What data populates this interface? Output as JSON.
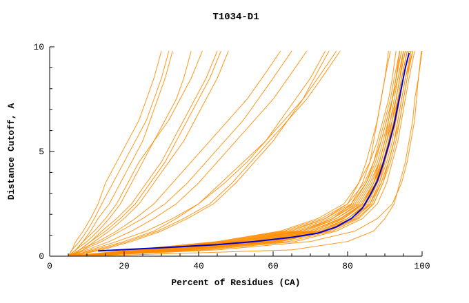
{
  "chart_data": {
    "type": "line",
    "title": "T1034-D1",
    "xlabel": "Percent of Residues (CA)",
    "ylabel": "Distance Cutoff, A",
    "xlim": [
      0,
      100
    ],
    "ylim": [
      0,
      10
    ],
    "xticks": [
      0,
      20,
      40,
      60,
      80,
      100
    ],
    "x_minor_step": 5,
    "yticks": [
      0,
      5,
      10
    ],
    "y_minor_step": 1,
    "grid": false,
    "legend": "none",
    "colors": {
      "model_lines": "#ff8c00",
      "best_model_line": "#0000cd",
      "axis": "#000000",
      "background": "#ffffff"
    },
    "y_levels": [
      0,
      0.3,
      0.7,
      1.2,
      1.8,
      2.5,
      3.5,
      4.5,
      5.5,
      6.5,
      7.5,
      8.5,
      9.8
    ],
    "model_series_x": [
      [
        5,
        6,
        7,
        9,
        11,
        13,
        15,
        18,
        21,
        24,
        26,
        28,
        30
      ],
      [
        5,
        7,
        9,
        11,
        13,
        16,
        19,
        22,
        25,
        27,
        29,
        31,
        33
      ],
      [
        5,
        6,
        8,
        10,
        12,
        14,
        17,
        20,
        23,
        26,
        28,
        30,
        32
      ],
      [
        5,
        7,
        10,
        13,
        16,
        19,
        22,
        25,
        28,
        31,
        34,
        36,
        38
      ],
      [
        5,
        7,
        9,
        12,
        15,
        18,
        21,
        24,
        28,
        32,
        35,
        38,
        41
      ],
      [
        6,
        8,
        11,
        14,
        18,
        22,
        26,
        30,
        33,
        36,
        39,
        42,
        45
      ],
      [
        5,
        8,
        11,
        15,
        19,
        23,
        27,
        31,
        34,
        37,
        40,
        43,
        46
      ],
      [
        6,
        9,
        12,
        16,
        20,
        24,
        28,
        32,
        36,
        39,
        42,
        45,
        48
      ],
      [
        5,
        8,
        13,
        18,
        23,
        28,
        33,
        38,
        43,
        48,
        53,
        57,
        62
      ],
      [
        5,
        9,
        14,
        19,
        25,
        31,
        37,
        42,
        47,
        52,
        56,
        60,
        65
      ],
      [
        5,
        10,
        16,
        22,
        28,
        34,
        40,
        45,
        50,
        55,
        60,
        64,
        69
      ],
      [
        6,
        11,
        18,
        26,
        33,
        40,
        47,
        53,
        58,
        62,
        66,
        70,
        74
      ],
      [
        6,
        14,
        22,
        30,
        37,
        44,
        50,
        55,
        60,
        64,
        68,
        71,
        75
      ],
      [
        5,
        12,
        20,
        28,
        34,
        40,
        46,
        52,
        58,
        63,
        68,
        72,
        77
      ],
      [
        6,
        13,
        21,
        29,
        36,
        43,
        49,
        54,
        59,
        64,
        69,
        73,
        78
      ],
      [
        5,
        22,
        45,
        62,
        72,
        79,
        83,
        86,
        88,
        89.5,
        91,
        92,
        93
      ],
      [
        5,
        23,
        46,
        63,
        73,
        80,
        84.5,
        87,
        89,
        90.5,
        92,
        93,
        94.5
      ],
      [
        5,
        24,
        47,
        64,
        74,
        81,
        85,
        87.5,
        89,
        90.5,
        92,
        93.5,
        95
      ],
      [
        5,
        25,
        48,
        65,
        74,
        80,
        83,
        85,
        86.5,
        88,
        89,
        90,
        91.5
      ],
      [
        5,
        25,
        50,
        67,
        76,
        82.5,
        86,
        88.5,
        90,
        91.5,
        93,
        94,
        95.5
      ],
      [
        5,
        26,
        49,
        66,
        75,
        81.5,
        85,
        87,
        88.5,
        90,
        91.5,
        92.5,
        94
      ],
      [
        6,
        27,
        50,
        67,
        76,
        82,
        85.5,
        88,
        89.5,
        91,
        92,
        93,
        94.5
      ],
      [
        6,
        28,
        52,
        68,
        76,
        81,
        84,
        86,
        87,
        88,
        89,
        90,
        91
      ],
      [
        6,
        28,
        51,
        68,
        77,
        83.5,
        87,
        89,
        90.5,
        92,
        93.5,
        94.5,
        96
      ],
      [
        6,
        29,
        53,
        69,
        77,
        83,
        86.5,
        88.5,
        90,
        91,
        92,
        93,
        94
      ],
      [
        6,
        29,
        54,
        70,
        78,
        84,
        87,
        89.5,
        91,
        92.5,
        94,
        95,
        96.5
      ],
      [
        6,
        30,
        55,
        70,
        78.5,
        84,
        87.5,
        89.5,
        91,
        92.5,
        93.5,
        94.5,
        96
      ],
      [
        6,
        30,
        54,
        70,
        78,
        84,
        87,
        89,
        90.5,
        92,
        93,
        94,
        95.5
      ],
      [
        7,
        31,
        56,
        71,
        79,
        84.5,
        87.5,
        89.5,
        91,
        92,
        93,
        94,
        95
      ],
      [
        7,
        32,
        57,
        71,
        79,
        84,
        87,
        88.5,
        90,
        91,
        92,
        93,
        94
      ],
      [
        6,
        32,
        57,
        72,
        80,
        85.5,
        88,
        90,
        91.5,
        92.5,
        93.5,
        94.5,
        96
      ],
      [
        7,
        33,
        58,
        72,
        80,
        85,
        88,
        90,
        91.5,
        93,
        94,
        95,
        96.5
      ],
      [
        6,
        34,
        59,
        73,
        81,
        86,
        88.5,
        90.5,
        92,
        93,
        94,
        95,
        96.5
      ],
      [
        6,
        35,
        60,
        73,
        80,
        85,
        87.5,
        89,
        90.5,
        91.5,
        92.5,
        93.5,
        95
      ],
      [
        7,
        35,
        60,
        74,
        81,
        86,
        89,
        91,
        92.5,
        94,
        95,
        96,
        97
      ],
      [
        7,
        36,
        61,
        74,
        81.5,
        86.5,
        89,
        91,
        92.5,
        93.5,
        94.5,
        95.5,
        97.5
      ],
      [
        7,
        37,
        62,
        75,
        82.5,
        87,
        89.5,
        91.5,
        93,
        94,
        95,
        96,
        97.5
      ],
      [
        8,
        38,
        62,
        75,
        82,
        86,
        88.5,
        90,
        91.5,
        92.5,
        93.5,
        94.5,
        96
      ],
      [
        8,
        40,
        64,
        76,
        83,
        87,
        89.5,
        91,
        92.5,
        93.5,
        94.5,
        95.5,
        97
      ],
      [
        8,
        42,
        66,
        77,
        84,
        88,
        90.5,
        92,
        93.5,
        94.5,
        95.5,
        96.5,
        98
      ],
      [
        8,
        45,
        70,
        82,
        88,
        92,
        94.5,
        96,
        97,
        98,
        98.5,
        99,
        99.8
      ],
      [
        10,
        65,
        80,
        87,
        90,
        92.5,
        94,
        95.5,
        96.5,
        97.5,
        98,
        99,
        100
      ]
    ],
    "best_model": {
      "name": "highlighted-model",
      "points": [
        [
          13,
          0.25
        ],
        [
          30,
          0.4
        ],
        [
          45,
          0.55
        ],
        [
          55,
          0.7
        ],
        [
          65,
          0.9
        ],
        [
          72,
          1.1
        ],
        [
          77,
          1.4
        ],
        [
          81,
          1.8
        ],
        [
          84,
          2.3
        ],
        [
          86,
          2.9
        ],
        [
          88,
          3.6
        ],
        [
          89.5,
          4.4
        ],
        [
          91,
          5.3
        ],
        [
          92.5,
          6.3
        ],
        [
          93.5,
          7.2
        ],
        [
          94.5,
          8.1
        ],
        [
          95.5,
          9.0
        ],
        [
          96.5,
          9.7
        ]
      ]
    }
  }
}
